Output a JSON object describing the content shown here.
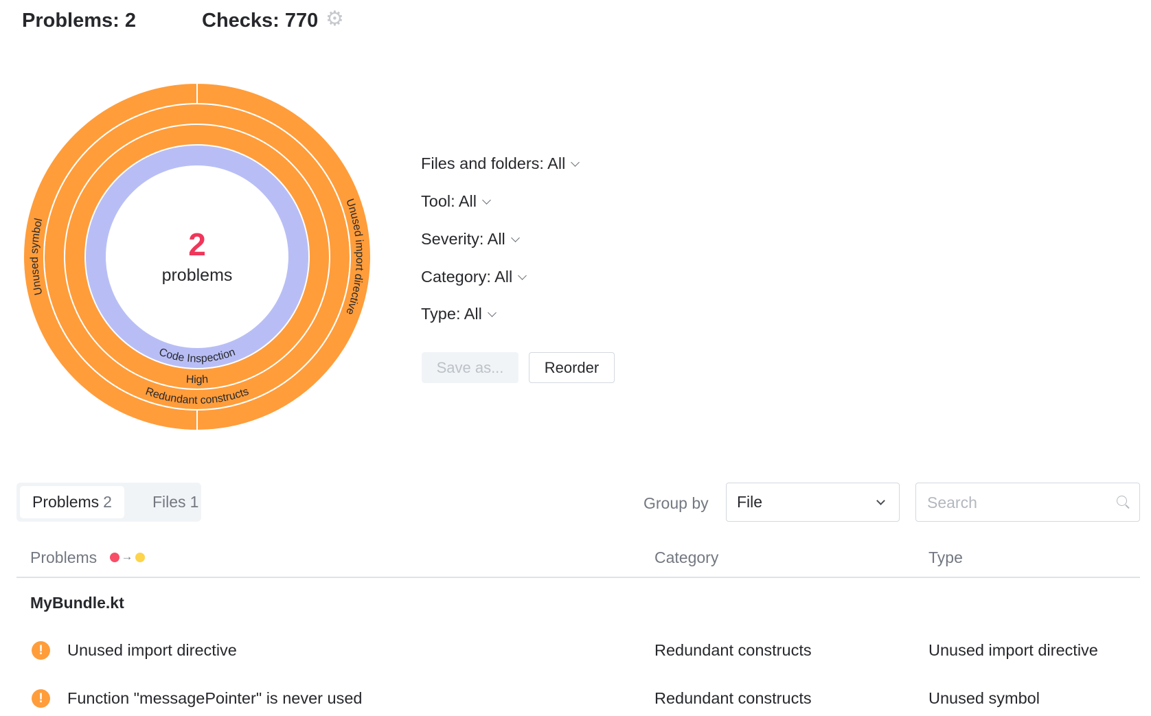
{
  "header": {
    "problems_label": "Problems: 2",
    "checks_label": "Checks: 770",
    "settings_icon": "gear-icon"
  },
  "summary": {
    "count": "2",
    "count_label": "problems",
    "count_color": "#f0365a"
  },
  "chart_data": {
    "type": "sunburst",
    "rings": [
      {
        "level": "Tool",
        "color": "#b8bef5",
        "segments": [
          {
            "label": "Code Inspection",
            "value": 2
          }
        ]
      },
      {
        "level": "Severity",
        "color": "#ff9d3b",
        "segments": [
          {
            "label": "High",
            "value": 2
          }
        ]
      },
      {
        "level": "Category",
        "color": "#ff9d3b",
        "segments": [
          {
            "label": "Redundant constructs",
            "value": 2
          }
        ]
      },
      {
        "level": "Type",
        "color": "#ff9d3b",
        "segments": [
          {
            "label": "Unused import directive",
            "value": 1
          },
          {
            "label": "Unused symbol",
            "value": 1
          }
        ]
      }
    ]
  },
  "filters": [
    {
      "label": "Files and folders: All"
    },
    {
      "label": "Tool: All"
    },
    {
      "label": "Severity: All"
    },
    {
      "label": "Category: All"
    },
    {
      "label": "Type: All"
    }
  ],
  "actions": {
    "save_as": "Save as...",
    "reorder": "Reorder"
  },
  "tabs": [
    {
      "label": "Problems",
      "count": "2",
      "active": true
    },
    {
      "label": "Files",
      "count": "1",
      "active": false
    }
  ],
  "group_by": {
    "label": "Group by",
    "value": "File"
  },
  "search": {
    "placeholder": "Search",
    "value": ""
  },
  "table": {
    "columns": [
      "Problems",
      "Category",
      "Type"
    ],
    "sort_indicator": {
      "from_color": "#f84d67",
      "to_color": "#fdd44b",
      "arrow": "→"
    },
    "groups": [
      {
        "file": "MyBundle.kt",
        "rows": [
          {
            "problem": "Unused import directive",
            "category": "Redundant constructs",
            "type": "Unused import directive",
            "severity_icon": "!"
          },
          {
            "problem": "Function \"messagePointer\" is never used",
            "category": "Redundant constructs",
            "type": "Unused symbol",
            "severity_icon": "!"
          }
        ]
      }
    ]
  }
}
